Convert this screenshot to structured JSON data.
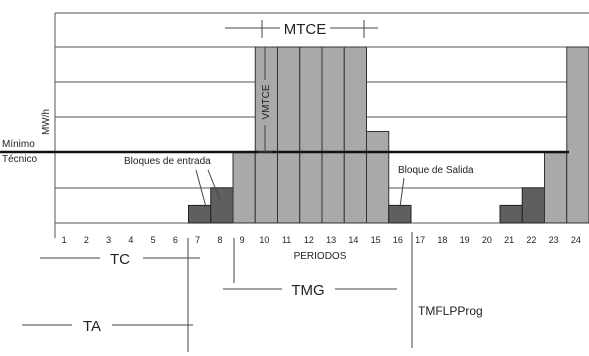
{
  "labels": {
    "mtce": "MTCE",
    "vmtce": "VMTCE",
    "y_axis": "MW/h",
    "minimo_line1": "Mínimo",
    "minimo_line2": "Técnico",
    "bloques_entrada": "Bloques de entrada",
    "bloque_salida": "Bloque de Salida",
    "x_axis": "PERIODOS",
    "tc": "TC",
    "tmg": "TMG",
    "ta": "TA",
    "tmflpprog": "TMFLPProg"
  },
  "periods": [
    "1",
    "2",
    "3",
    "4",
    "5",
    "6",
    "7",
    "8",
    "9",
    "10",
    "11",
    "12",
    "13",
    "14",
    "15",
    "16",
    "17",
    "18",
    "19",
    "20",
    "21",
    "22",
    "23",
    "24"
  ],
  "levels": {
    "max": 5,
    "minimo_tecnico": 2.2
  },
  "blocks": [
    {
      "period": 7,
      "level": 0.5,
      "tone": "dark"
    },
    {
      "period": 8,
      "level": 1.0,
      "tone": "dark"
    },
    {
      "period": 9,
      "level": 2.0,
      "tone": "light"
    },
    {
      "period": 10,
      "level": 5.0,
      "tone": "light"
    },
    {
      "period": 11,
      "level": 5.0,
      "tone": "light"
    },
    {
      "period": 12,
      "level": 5.0,
      "tone": "light"
    },
    {
      "period": 13,
      "level": 5.0,
      "tone": "light"
    },
    {
      "period": 14,
      "level": 5.0,
      "tone": "light"
    },
    {
      "period": 15,
      "level": 2.6,
      "tone": "light"
    },
    {
      "period": 16,
      "level": 0.5,
      "tone": "dark"
    },
    {
      "period": 21,
      "level": 0.5,
      "tone": "dark"
    },
    {
      "period": 22,
      "level": 1.0,
      "tone": "dark"
    },
    {
      "period": 23,
      "level": 2.0,
      "tone": "light"
    },
    {
      "period": 24,
      "level": 5.0,
      "tone": "light"
    }
  ]
}
